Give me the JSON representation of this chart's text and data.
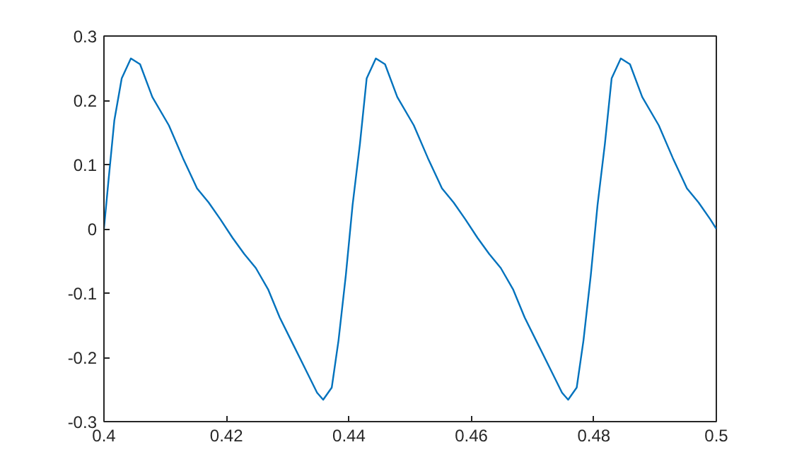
{
  "chart_data": {
    "type": "line",
    "x": [
      0.4,
      0.4008,
      0.4017,
      0.4029,
      0.4044,
      0.4059,
      0.4079,
      0.4106,
      0.4129,
      0.4152,
      0.4171,
      0.419,
      0.421,
      0.4229,
      0.4248,
      0.4268,
      0.4287,
      0.431,
      0.4333,
      0.4348,
      0.4358,
      0.4372,
      0.4383,
      0.4395,
      0.4406,
      0.4418,
      0.4429,
      0.4444,
      0.4459,
      0.4479,
      0.4506,
      0.4529,
      0.4552,
      0.4571,
      0.459,
      0.461,
      0.4629,
      0.4648,
      0.4668,
      0.4687,
      0.471,
      0.4733,
      0.4748,
      0.4758,
      0.4772,
      0.4783,
      0.4795,
      0.4806,
      0.4818,
      0.4829,
      0.4844,
      0.4859,
      0.4879,
      0.4906,
      0.4929,
      0.4952,
      0.4971,
      0.499,
      0.5
    ],
    "series": [
      {
        "color": "#0072bd",
        "values": [
          0,
          0.081,
          0.169,
          0.234,
          0.265,
          0.256,
          0.205,
          0.161,
          0.11,
          0.063,
          0.041,
          0.015,
          -0.014,
          -0.039,
          -0.061,
          -0.094,
          -0.138,
          -0.182,
          -0.226,
          -0.255,
          -0.266,
          -0.247,
          -0.174,
          -0.072,
          0.037,
          0.132,
          0.234,
          0.265,
          0.256,
          0.205,
          0.161,
          0.11,
          0.063,
          0.041,
          0.015,
          -0.014,
          -0.039,
          -0.061,
          -0.094,
          -0.138,
          -0.182,
          -0.226,
          -0.255,
          -0.266,
          -0.247,
          -0.174,
          -0.072,
          0.037,
          0.132,
          0.234,
          0.265,
          0.256,
          0.205,
          0.161,
          0.11,
          0.063,
          0.041,
          0.015,
          0.0
        ]
      }
    ],
    "xlim": [
      0.4,
      0.5
    ],
    "ylim": [
      -0.3,
      0.3
    ],
    "xticks": [
      0.4,
      0.42,
      0.44,
      0.46,
      0.48,
      0.5
    ],
    "yticks": [
      -0.3,
      -0.2,
      -0.1,
      0,
      0.1,
      0.2,
      0.3
    ],
    "grid": false
  }
}
